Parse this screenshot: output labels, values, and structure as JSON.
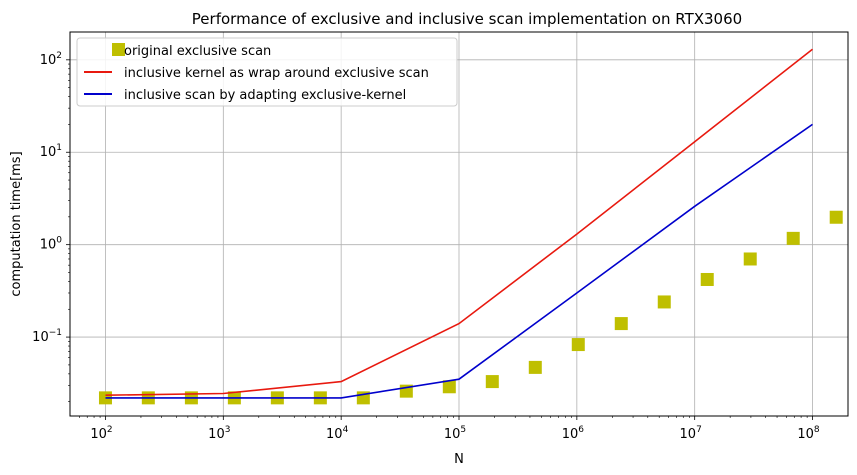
{
  "chart_data": {
    "type": "line",
    "title": "Performance of exclusive and inclusive scan implementation on RTX3060",
    "xlabel": "N",
    "ylabel": "computation time[ms]",
    "xscale": "log",
    "yscale": "log",
    "xlim": [
      50,
      200000000
    ],
    "ylim": [
      0.014,
      200
    ],
    "grid": true,
    "legend_position": "top-left",
    "x_ticks": [
      {
        "value": 100,
        "base": "10",
        "exp": "2"
      },
      {
        "value": 1000,
        "base": "10",
        "exp": "3"
      },
      {
        "value": 10000,
        "base": "10",
        "exp": "4"
      },
      {
        "value": 100000,
        "base": "10",
        "exp": "5"
      },
      {
        "value": 1000000,
        "base": "10",
        "exp": "6"
      },
      {
        "value": 10000000,
        "base": "10",
        "exp": "7"
      },
      {
        "value": 100000000,
        "base": "10",
        "exp": "8"
      }
    ],
    "y_ticks": [
      {
        "value": 0.1,
        "base": "10",
        "exp": "−1"
      },
      {
        "value": 1,
        "base": "10",
        "exp": "0"
      },
      {
        "value": 10,
        "base": "10",
        "exp": "1"
      },
      {
        "value": 100,
        "base": "10",
        "exp": "2"
      }
    ],
    "series": [
      {
        "name": "original exclusive scan",
        "style": "markers",
        "marker": "square",
        "color": "#bfbf00",
        "x": [
          100,
          231,
          536,
          1241,
          2874,
          6659,
          15424,
          35727,
          82755,
          191688,
          444008,
          1028464,
          2382250,
          5518094,
          12781614,
          29606318,
          68576905,
          158844776
        ],
        "y": [
          0.022,
          0.022,
          0.022,
          0.022,
          0.022,
          0.022,
          0.022,
          0.026,
          0.029,
          0.033,
          0.047,
          0.083,
          0.14,
          0.24,
          0.42,
          0.7,
          1.17,
          1.98
        ]
      },
      {
        "name": "inclusive kernel as wrap around exclusive scan",
        "style": "line",
        "color": "#e8190f",
        "x": [
          100,
          1000,
          10000,
          100000,
          1000000,
          10000000,
          100000000
        ],
        "y": [
          0.0235,
          0.0245,
          0.033,
          0.14,
          1.3,
          13,
          130
        ]
      },
      {
        "name": "inclusive scan by adapting exclusive-kernel",
        "style": "line",
        "color": "#0000cc",
        "x": [
          100,
          1000,
          10000,
          100000,
          1000000,
          10000000,
          100000000
        ],
        "y": [
          0.022,
          0.022,
          0.022,
          0.035,
          0.3,
          2.6,
          20
        ]
      }
    ]
  }
}
